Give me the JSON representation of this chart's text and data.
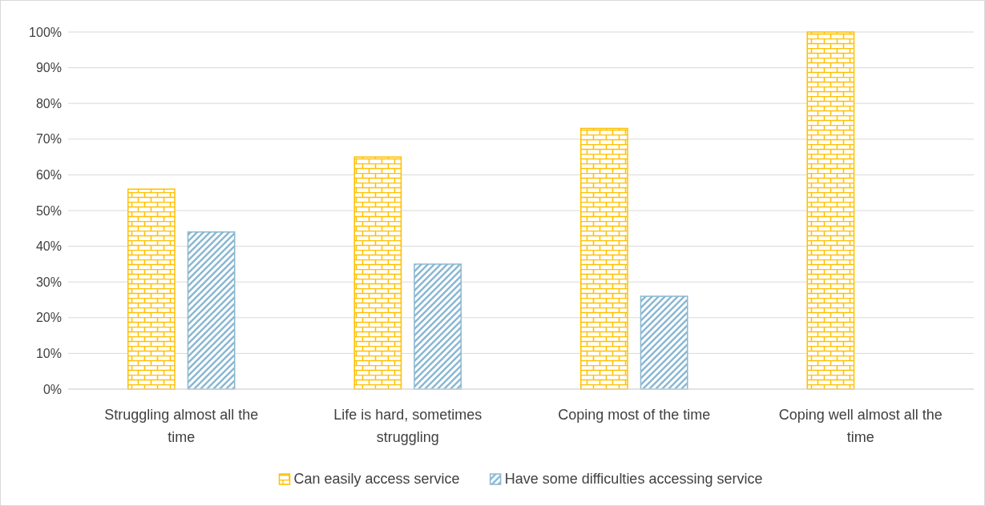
{
  "chart_data": {
    "type": "bar",
    "categories": [
      "Struggling almost all the time",
      "Life is hard, sometimes struggling",
      "Coping most of the time",
      "Coping well almost all the time"
    ],
    "series": [
      {
        "name": "Can easily access service",
        "color": "#ffc000",
        "values": [
          56,
          65,
          73,
          100
        ]
      },
      {
        "name": "Have some difficulties accessing service",
        "color": "#8ab8d2",
        "values": [
          44,
          35,
          26,
          null
        ]
      }
    ],
    "ylim": [
      0,
      100
    ],
    "yticks": [
      {
        "value": 0,
        "label": "0%"
      },
      {
        "value": 10,
        "label": "10%"
      },
      {
        "value": 20,
        "label": "20%"
      },
      {
        "value": 30,
        "label": "30%"
      },
      {
        "value": 40,
        "label": "40%"
      },
      {
        "value": 50,
        "label": "50%"
      },
      {
        "value": 60,
        "label": "60%"
      },
      {
        "value": 70,
        "label": "70%"
      },
      {
        "value": 80,
        "label": "80%"
      },
      {
        "value": 90,
        "label": "90%"
      },
      {
        "value": 100,
        "label": "100%"
      }
    ],
    "grid": "y",
    "legend": "bottom"
  }
}
